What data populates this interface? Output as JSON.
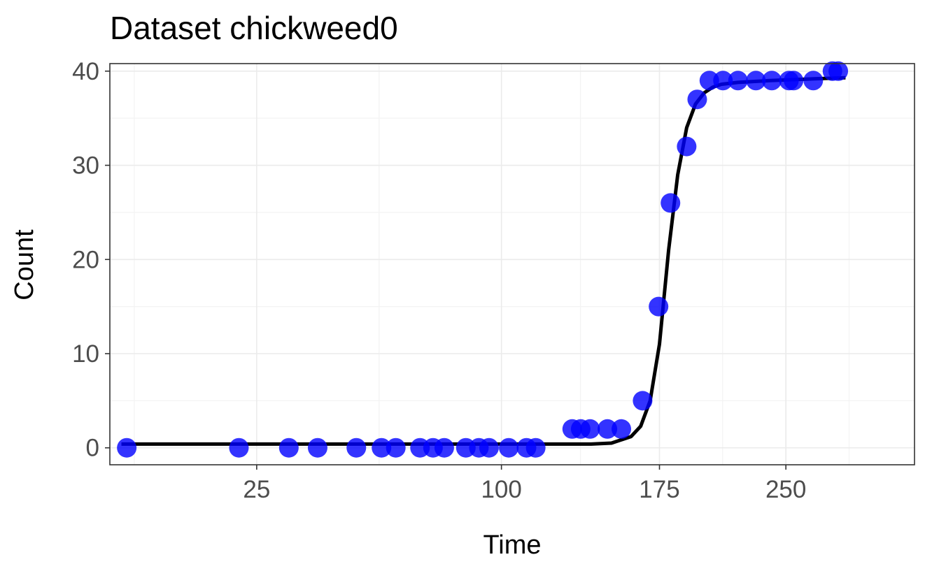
{
  "chart_data": {
    "type": "scatter",
    "title": "Dataset chickweed0",
    "xlabel": "Time",
    "ylabel": "Count",
    "x_scale": "sqrt",
    "xlim": [
      4,
      340
    ],
    "ylim": [
      -1.8,
      40.8
    ],
    "x_ticks": [
      25,
      100,
      175,
      250
    ],
    "y_ticks": [
      0,
      10,
      20,
      30,
      40
    ],
    "grid": true,
    "legend": "none",
    "point_color": "#0000ff",
    "point_alpha": 0.8,
    "line_color": "#000000",
    "points": {
      "x": [
        5.5,
        21.5,
        32,
        39,
        49.5,
        57,
        61.5,
        69.5,
        74,
        78,
        86,
        91,
        95,
        103,
        110.5,
        114.5,
        131,
        135,
        139.5,
        148,
        155,
        166,
        174.5,
        181,
        190,
        196,
        203,
        211,
        220,
        231,
        241,
        252,
        255,
        268,
        281,
        285
      ],
      "y": [
        0,
        0,
        0,
        0,
        0,
        0,
        0,
        0,
        0,
        0,
        0,
        0,
        0,
        0,
        0,
        0,
        2,
        2,
        2,
        2,
        2,
        5,
        15,
        26,
        32,
        37,
        39,
        39,
        39,
        39,
        39,
        39,
        39,
        39,
        40,
        40
      ]
    },
    "fitted_curve": {
      "x": [
        5,
        30,
        60,
        100,
        130,
        140,
        150,
        160,
        165,
        170,
        175,
        180,
        185,
        190,
        195,
        200,
        205,
        210,
        220,
        240,
        270,
        290
      ],
      "y": [
        0.4,
        0.4,
        0.4,
        0.4,
        0.4,
        0.4,
        0.5,
        1.2,
        2.3,
        5,
        11,
        21,
        29,
        34,
        36.5,
        37.7,
        38.3,
        38.6,
        38.8,
        39,
        39.2,
        39.3
      ]
    }
  }
}
